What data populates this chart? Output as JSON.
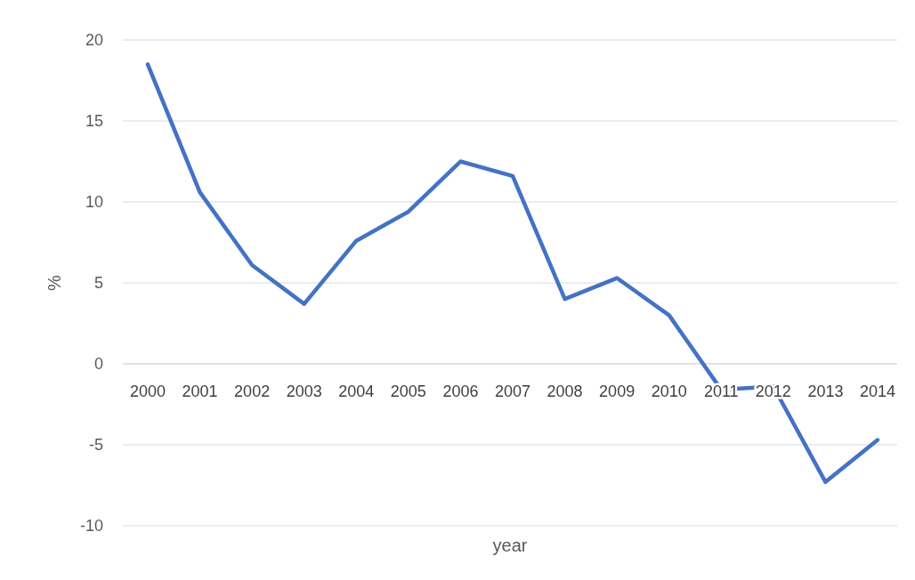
{
  "chart_data": {
    "type": "line",
    "xlabel": "year",
    "ylabel": "%",
    "categories": [
      "2000",
      "2001",
      "2002",
      "2003",
      "2004",
      "2005",
      "2006",
      "2007",
      "2008",
      "2009",
      "2010",
      "2011",
      "2012",
      "2013",
      "2014"
    ],
    "series": [
      {
        "color": "#4472c4",
        "values": [
          18.5,
          10.6,
          6.1,
          3.7,
          7.6,
          9.4,
          12.5,
          11.6,
          4.0,
          5.3,
          3.0,
          -1.6,
          -1.4,
          -7.3,
          -4.7
        ]
      }
    ],
    "ylim": [
      -10,
      20
    ],
    "yticks": [
      -10,
      -5,
      0,
      5,
      10,
      15,
      20
    ],
    "grid": "y",
    "marker": "none",
    "line_style": "solid"
  }
}
